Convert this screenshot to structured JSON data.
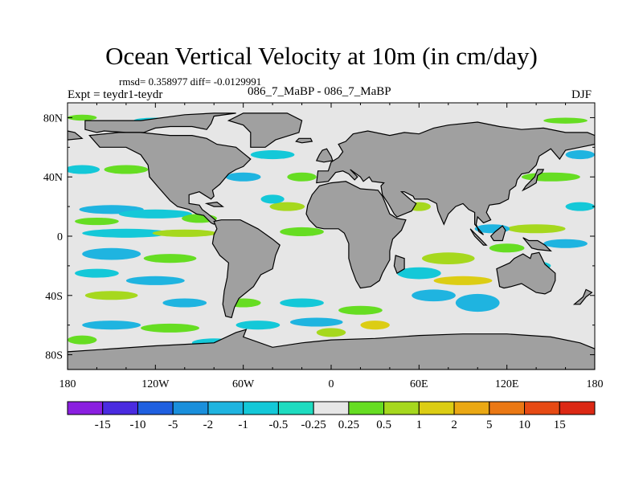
{
  "chart_data": {
    "type": "heatmap",
    "title": "Ocean Vertical Velocity at 10m (in cm/day)",
    "stats": "rmsd= 0.358977 diff= -0.0129991",
    "left_label": "Expt = teydr1-teydr",
    "center_label": "086_7_MaBP - 086_7_MaBP",
    "right_label": "DJF",
    "x_ticks": [
      "180",
      "120W",
      "60W",
      "0",
      "60E",
      "120E",
      "180"
    ],
    "y_ticks": [
      "80N",
      "40N",
      "0",
      "40S",
      "80S"
    ],
    "xlim": [
      -180,
      180
    ],
    "ylim": [
      -90,
      90
    ],
    "colorbar": {
      "levels": [
        "-15",
        "-10",
        "-5",
        "-2",
        "-1",
        "-0.5",
        "-0.25",
        "0.25",
        "0.5",
        "1",
        "2",
        "5",
        "10",
        "15"
      ],
      "colors": [
        "#8a1fe0",
        "#4a2be0",
        "#1f5fe0",
        "#1a8fdc",
        "#1fb4e0",
        "#14c8d8",
        "#1edcc0",
        "#e6e6e6",
        "#66dd22",
        "#a6d81e",
        "#dccd14",
        "#eaa814",
        "#ea7814",
        "#e64a14",
        "#dc2814"
      ]
    },
    "land_color": "#a0a0a0",
    "ocean_color": "#e6e6e6"
  }
}
